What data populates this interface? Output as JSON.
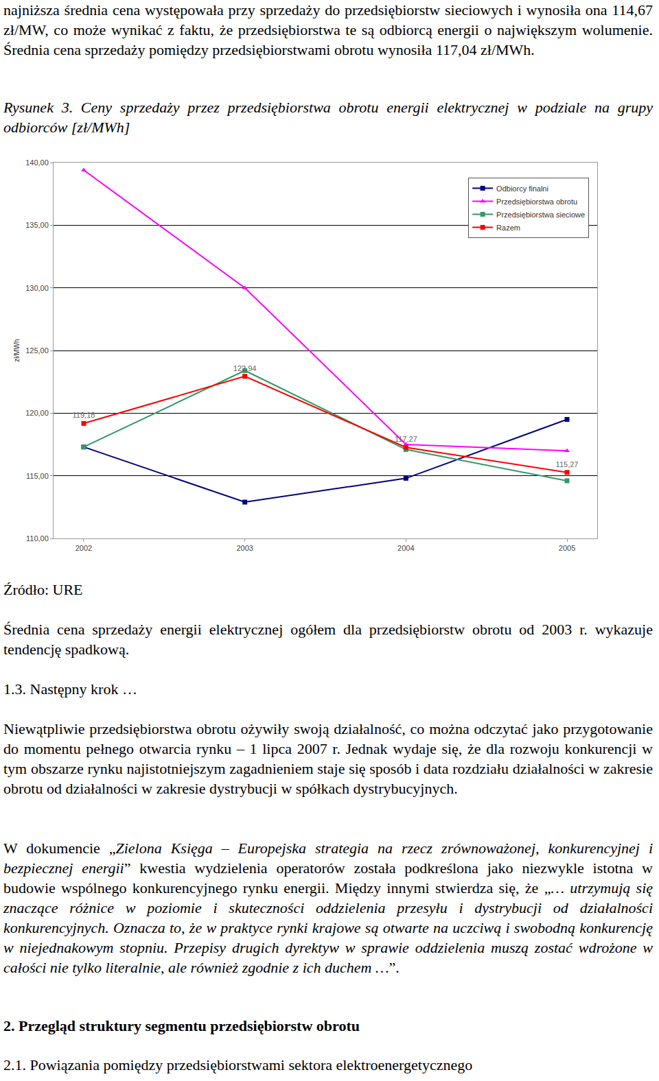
{
  "paragraph_1": [
    {
      "text": "najniższa średnia cena występowała przy sprzedaży do przedsiębiorstw sieciowych i wynosiła ona 114,67 zł/MW, co może wynikać z faktu, że przedsiębiorstwa te są odbiorcą energii o największym wolumenie. Średnia cena sprzedaży pomiędzy przedsiębiorstwami obrotu wynosiła 117,04 zł/MWh.",
      "italic": false
    }
  ],
  "caption": [
    {
      "text": "Rysunek 3. Ceny sprzedaży przez przedsiębiorstwa obrotu energii elektrycznej w podziale na grupy odbiorców [zł/MWh]",
      "italic": true
    }
  ],
  "chart_data": {
    "type": "line",
    "y_label": "zł/MWh",
    "categories": [
      "2002",
      "2003",
      "2004",
      "2005"
    ],
    "ylim": [
      110,
      140
    ],
    "yticks": [
      {
        "value": 110,
        "label": "110,00"
      },
      {
        "value": 115,
        "label": "115,00"
      },
      {
        "value": 120,
        "label": "120,00"
      },
      {
        "value": 125,
        "label": "125,00"
      },
      {
        "value": 130,
        "label": "130,00"
      },
      {
        "value": 135,
        "label": "135,00"
      },
      {
        "value": 140,
        "label": "140,00"
      }
    ],
    "grid": true,
    "legend": "top-right",
    "data_labels": true,
    "series": [
      {
        "name": "Odbiorcy finalni",
        "color": "#000080",
        "marker": "square",
        "values": [
          117.3,
          112.9,
          114.8,
          119.5
        ]
      },
      {
        "name": "Przedsiębiorstwa obrotu",
        "color": "#FF00FF",
        "marker": "triangle-up",
        "values": [
          139.4,
          130.0,
          117.5,
          117.0
        ]
      },
      {
        "name": "Przedsiębiorstwa sieciowe",
        "color": "#339966",
        "marker": "square",
        "values": [
          117.3,
          123.4,
          117.1,
          114.6
        ]
      },
      {
        "name": "Razem",
        "color": "#FF0000",
        "marker": "square",
        "values": [
          119.18,
          122.94,
          117.27,
          115.27
        ],
        "value_labels": [
          "119,18",
          "122,94",
          "117,27",
          "115,27"
        ]
      }
    ]
  },
  "source": [
    {
      "text": "Źródło: URE",
      "italic": false
    }
  ],
  "paragraph_2": [
    {
      "text": "Średnia cena sprzedaży energii elektrycznej ogółem dla przedsiębiorstw obrotu od 2003 r. wykazuje tendencję spadkową.",
      "italic": false
    }
  ],
  "heading_1": [
    {
      "text": "1.3. Następny krok …",
      "italic": false
    }
  ],
  "paragraph_3": [
    {
      "text": "Niewątpliwie przedsiębiorstwa obrotu ożywiły swoją działalność, co można odczytać jako przygotowanie do momentu pełnego otwarcia rynku – 1 lipca 2007 r. Jednak wydaje się, że dla rozwoju konkurencji w tym obszarze rynku najistotniejszym zagadnieniem staje się sposób i data rozdziału działalności w zakresie obrotu od działalności w zakresie dystrybucji w spółkach dystrybucyjnych.",
      "italic": false
    }
  ],
  "paragraph_4": [
    {
      "text": "W dokumencie „",
      "italic": false
    },
    {
      "text": "Zielona Księga – Europejska strategia na rzecz zrównoważonej, konkurencyjnej i bezpiecznej energii",
      "italic": true
    },
    {
      "text": "” kwestia wydzielenia operatorów została podkreślona jako niezwykle istotna w budowie wspólnego konkurencyjnego rynku energii. Między innymi stwierdza się, że „",
      "italic": false
    },
    {
      "text": "… utrzymują się znaczące różnice w poziomie i skuteczności oddzielenia przesyłu i dystrybucji od działalności konkurencyjnych. Oznacza to, że w praktyce rynki krajowe są otwarte na uczciwą i swobodną konkurencję w niejednakowym stopniu. Przepisy drugich dyrektyw w sprawie oddzielenia muszą zostać wdrożone w całości nie tylko literalnie, ale również zgodnie z ich duchem …",
      "italic": true
    },
    {
      "text": "”.",
      "italic": false
    }
  ],
  "heading_2": [
    {
      "text": "2. Przegląd struktury segmentu przedsiębiorstw obrotu",
      "bold": true
    }
  ],
  "heading_3": [
    {
      "text": "2.1. Powiązania pomiędzy przedsiębiorstwami sektora elektroenergetycznego",
      "bold": false
    }
  ]
}
